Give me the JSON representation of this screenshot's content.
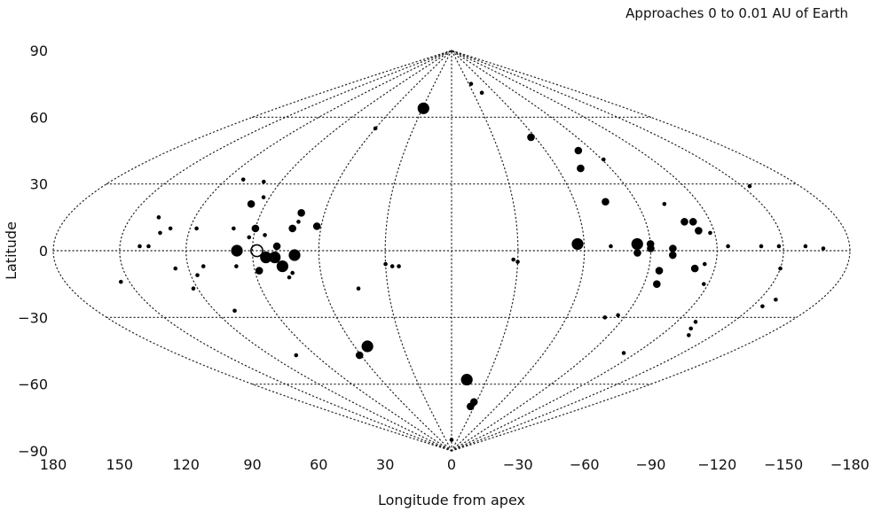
{
  "chart_data": {
    "type": "scatter",
    "projection": "sinusoidal",
    "title": "Approaches 0 to 0.01 AU of Earth",
    "xlabel": "Longitude from apex",
    "ylabel": "Latitude",
    "xlim": [
      180,
      -180
    ],
    "ylim": [
      -90,
      90
    ],
    "x_ticks": [
      "180",
      "150",
      "120",
      "90",
      "60",
      "30",
      "0",
      "−30",
      "−60",
      "−90",
      "−120",
      "−150",
      "−180"
    ],
    "y_ticks": [
      "90",
      "60",
      "30",
      "0",
      "−30",
      "−60",
      "−90"
    ],
    "grid": true,
    "points": [
      {
        "lon": 88,
        "lat": 0,
        "size": 3,
        "open": true
      },
      {
        "lon": 97,
        "lat": 0,
        "size": 3
      },
      {
        "lon": 84,
        "lat": -3,
        "size": 3
      },
      {
        "lon": 80,
        "lat": -3,
        "size": 3
      },
      {
        "lon": 77,
        "lat": -7,
        "size": 3
      },
      {
        "lon": 79,
        "lat": 2,
        "size": 2
      },
      {
        "lon": 71,
        "lat": -2,
        "size": 3
      },
      {
        "lon": 88,
        "lat": -9,
        "size": 2
      },
      {
        "lon": 90,
        "lat": 10,
        "size": 2
      },
      {
        "lon": 92,
        "lat": 6,
        "size": 1
      },
      {
        "lon": 85,
        "lat": 7,
        "size": 1
      },
      {
        "lon": 73,
        "lat": 10,
        "size": 2
      },
      {
        "lon": 71,
        "lat": 17,
        "size": 2
      },
      {
        "lon": 71,
        "lat": 13,
        "size": 1
      },
      {
        "lon": 62,
        "lat": 11,
        "size": 2
      },
      {
        "lon": 97,
        "lat": 21,
        "size": 2
      },
      {
        "lon": 93,
        "lat": 24,
        "size": 1
      },
      {
        "lon": 100,
        "lat": 10,
        "size": 1
      },
      {
        "lon": 98,
        "lat": -7,
        "size": 1
      },
      {
        "lon": 75,
        "lat": -12,
        "size": 1
      },
      {
        "lon": 73,
        "lat": -10,
        "size": 1
      },
      {
        "lon": 60,
        "lat": 55,
        "size": 1
      },
      {
        "lon": 29,
        "lat": 64,
        "size": 3
      },
      {
        "lon": 99,
        "lat": 31,
        "size": 1
      },
      {
        "lon": 111,
        "lat": 32,
        "size": 1
      },
      {
        "lon": 117,
        "lat": 10,
        "size": 1
      },
      {
        "lon": 113,
        "lat": -7,
        "size": 1
      },
      {
        "lon": 117,
        "lat": -11,
        "size": 1
      },
      {
        "lon": 129,
        "lat": 10,
        "size": 1
      },
      {
        "lon": 133,
        "lat": 8,
        "size": 1
      },
      {
        "lon": 126,
        "lat": -8,
        "size": 1
      },
      {
        "lon": 122,
        "lat": -17,
        "size": 1
      },
      {
        "lon": 137,
        "lat": 15,
        "size": 1
      },
      {
        "lon": 141,
        "lat": 2,
        "size": 1
      },
      {
        "lon": 137,
        "lat": 2,
        "size": 1
      },
      {
        "lon": 154,
        "lat": -14,
        "size": 1
      },
      {
        "lon": 110,
        "lat": -27,
        "size": 1
      },
      {
        "lon": 103,
        "lat": -47,
        "size": 1
      },
      {
        "lon": 52,
        "lat": -43,
        "size": 3
      },
      {
        "lon": 61,
        "lat": -47,
        "size": 2
      },
      {
        "lon": 44,
        "lat": -17,
        "size": 1
      },
      {
        "lon": 30,
        "lat": -6,
        "size": 1
      },
      {
        "lon": 27,
        "lat": -7,
        "size": 1
      },
      {
        "lon": 24,
        "lat": -7,
        "size": 1
      },
      {
        "lon": 0,
        "lat": -85,
        "size": 1
      },
      {
        "lon": -13,
        "lat": -58,
        "size": 3
      },
      {
        "lon": -25,
        "lat": -70,
        "size": 2
      },
      {
        "lon": -27,
        "lat": -68,
        "size": 2
      },
      {
        "lon": -28,
        "lat": -4,
        "size": 1
      },
      {
        "lon": -30,
        "lat": -5,
        "size": 1
      },
      {
        "lon": -57,
        "lat": 3,
        "size": 3
      },
      {
        "lon": -73,
        "lat": 37,
        "size": 2
      },
      {
        "lon": -57,
        "lat": 51,
        "size": 2
      },
      {
        "lon": -42,
        "lat": 71,
        "size": 1
      },
      {
        "lon": -34,
        "lat": 75,
        "size": 1
      },
      {
        "lon": -81,
        "lat": 45,
        "size": 2
      },
      {
        "lon": -91,
        "lat": 41,
        "size": 1
      },
      {
        "lon": -75,
        "lat": 22,
        "size": 2
      },
      {
        "lon": -84,
        "lat": 3,
        "size": 3
      },
      {
        "lon": -84,
        "lat": -1,
        "size": 2
      },
      {
        "lon": -90,
        "lat": 3,
        "size": 2
      },
      {
        "lon": -90,
        "lat": 1,
        "size": 2
      },
      {
        "lon": -100,
        "lat": 1,
        "size": 2
      },
      {
        "lon": -100,
        "lat": -2,
        "size": 2
      },
      {
        "lon": -95,
        "lat": -9,
        "size": 2
      },
      {
        "lon": -96,
        "lat": -15,
        "size": 2
      },
      {
        "lon": -72,
        "lat": 2,
        "size": 1
      },
      {
        "lon": -86,
        "lat": -29,
        "size": 1
      },
      {
        "lon": -80,
        "lat": -30,
        "size": 1
      },
      {
        "lon": -103,
        "lat": 21,
        "size": 1
      },
      {
        "lon": -108,
        "lat": 13,
        "size": 2
      },
      {
        "lon": -112,
        "lat": 13,
        "size": 2
      },
      {
        "lon": -113,
        "lat": 9,
        "size": 2
      },
      {
        "lon": -111,
        "lat": -8,
        "size": 2
      },
      {
        "lon": -115,
        "lat": -6,
        "size": 1
      },
      {
        "lon": -118,
        "lat": -15,
        "size": 1
      },
      {
        "lon": -125,
        "lat": 2,
        "size": 1
      },
      {
        "lon": -130,
        "lat": -32,
        "size": 1
      },
      {
        "lon": -132,
        "lat": -35,
        "size": 1
      },
      {
        "lon": -136,
        "lat": -38,
        "size": 1
      },
      {
        "lon": -140,
        "lat": 2,
        "size": 1
      },
      {
        "lon": -148,
        "lat": 2,
        "size": 1
      },
      {
        "lon": -150,
        "lat": -8,
        "size": 1
      },
      {
        "lon": -154,
        "lat": 29,
        "size": 1
      },
      {
        "lon": -158,
        "lat": -22,
        "size": 1
      },
      {
        "lon": -155,
        "lat": -25,
        "size": 1
      },
      {
        "lon": -160,
        "lat": 2,
        "size": 1
      },
      {
        "lon": -168,
        "lat": 1,
        "size": 1
      },
      {
        "lon": -112,
        "lat": -46,
        "size": 1
      },
      {
        "lon": -118,
        "lat": 8,
        "size": 1
      }
    ]
  }
}
